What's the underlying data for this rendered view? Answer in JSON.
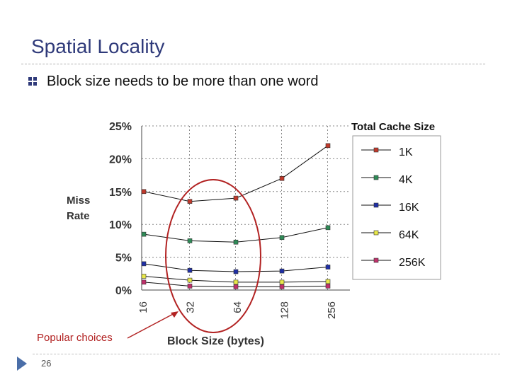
{
  "slide": {
    "title": "Spatial Locality",
    "bullet": "Block size needs to be more than one word",
    "page_number": "26",
    "callout": "Popular choices",
    "accent_color": "#2f3a7a",
    "highlight_color": "#b22222"
  },
  "chart_data": {
    "type": "line",
    "ylabel": "Miss Rate",
    "xlabel": "Block Size (bytes)",
    "legend_title": "Total Cache Size",
    "legend_position": "right",
    "x": [
      "16",
      "32",
      "64",
      "128",
      "256"
    ],
    "y_ticks": [
      "0%",
      "5%",
      "10%",
      "15%",
      "20%",
      "25%"
    ],
    "ylim": [
      0,
      25
    ],
    "grid": true,
    "highlighted_categories": [
      "32",
      "64"
    ],
    "series": [
      {
        "name": "1K",
        "color": "#c0392b",
        "values": [
          15,
          13.5,
          14,
          17,
          22
        ]
      },
      {
        "name": "4K",
        "color": "#2e8b57",
        "values": [
          8.5,
          7.5,
          7.3,
          8,
          9.5
        ]
      },
      {
        "name": "16K",
        "color": "#1f2fa6",
        "values": [
          4,
          3,
          2.8,
          2.9,
          3.5
        ]
      },
      {
        "name": "64K",
        "color": "#e8e84a",
        "values": [
          2.1,
          1.5,
          1.2,
          1.2,
          1.3
        ]
      },
      {
        "name": "256K",
        "color": "#c0306b",
        "values": [
          1.2,
          0.6,
          0.5,
          0.5,
          0.6
        ]
      }
    ]
  }
}
